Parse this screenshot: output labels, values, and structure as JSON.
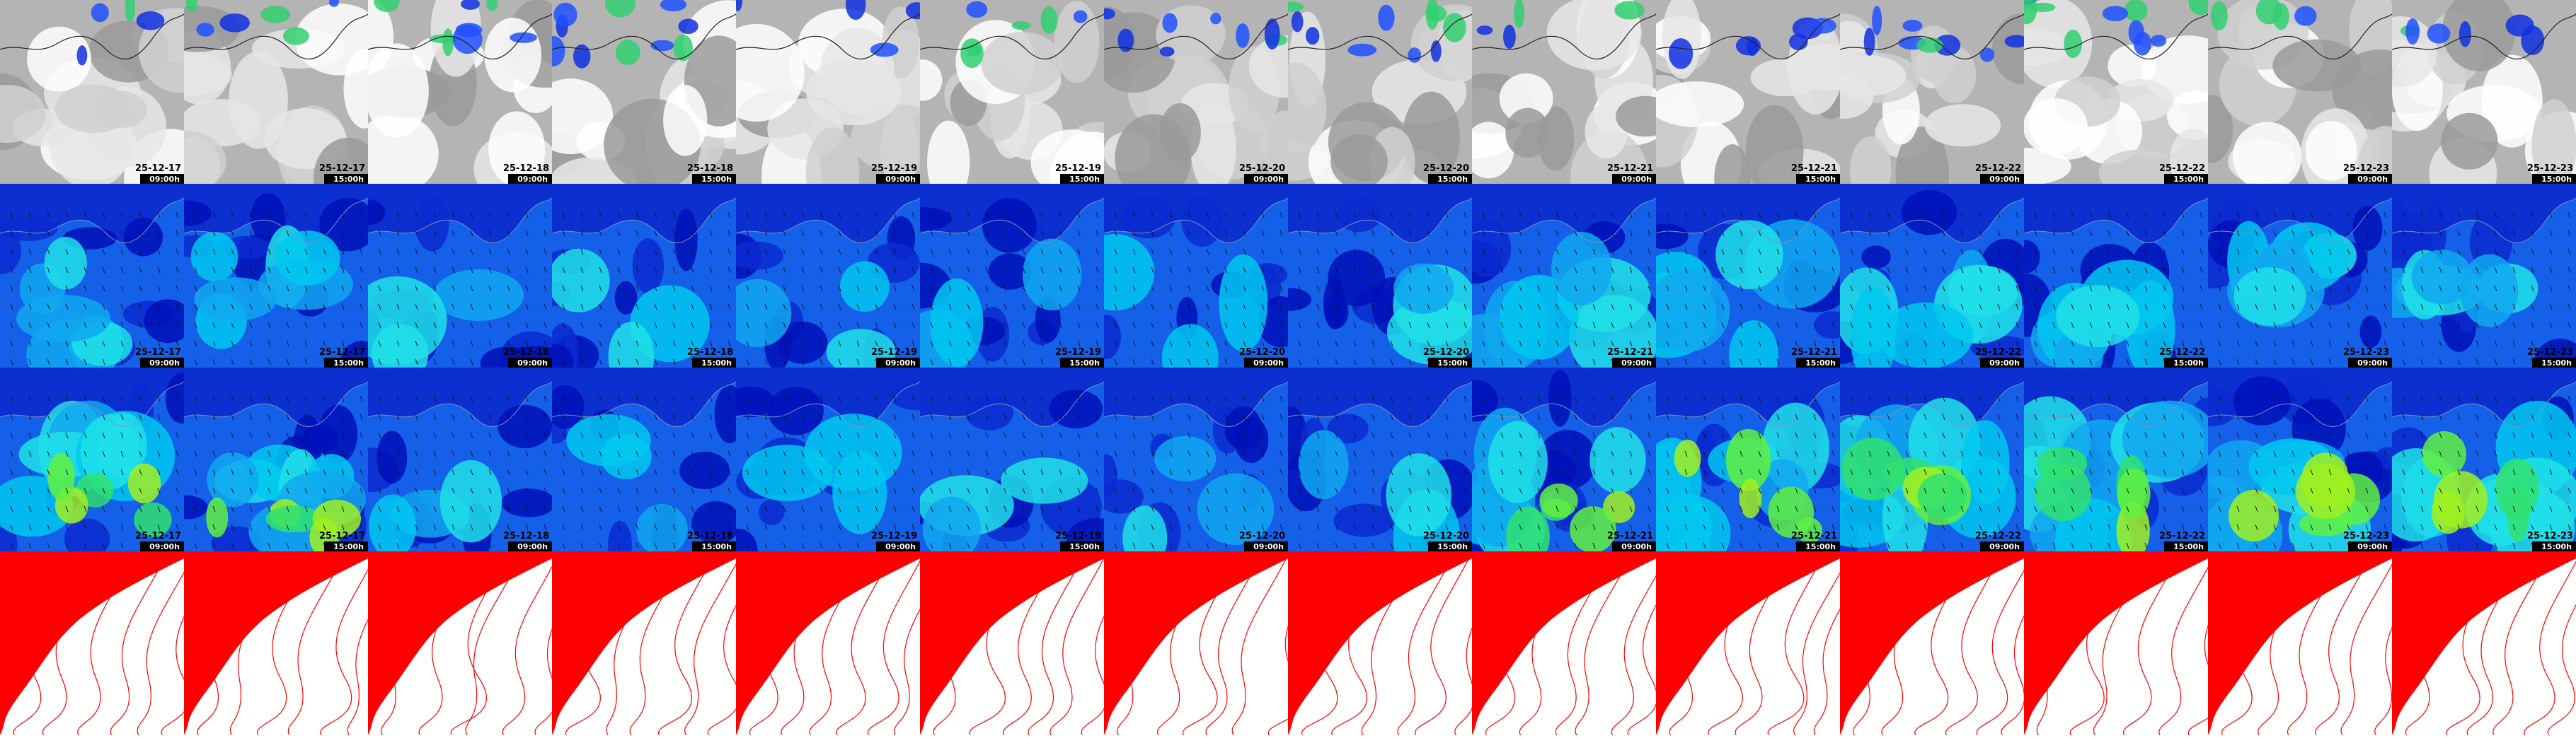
{
  "columns": [
    {
      "date": "25-12-17",
      "time": "09:00h"
    },
    {
      "date": "25-12-17",
      "time": "15:00h"
    },
    {
      "date": "25-12-18",
      "time": "09:00h"
    },
    {
      "date": "25-12-18",
      "time": "15:00h"
    },
    {
      "date": "25-12-19",
      "time": "09:00h"
    },
    {
      "date": "25-12-19",
      "time": "15:00h"
    },
    {
      "date": "25-12-20",
      "time": "09:00h"
    },
    {
      "date": "25-12-20",
      "time": "15:00h"
    },
    {
      "date": "25-12-21",
      "time": "09:00h"
    },
    {
      "date": "25-12-21",
      "time": "15:00h"
    },
    {
      "date": "25-12-22",
      "time": "09:00h"
    },
    {
      "date": "25-12-22",
      "time": "15:00h"
    },
    {
      "date": "25-12-23",
      "time": "09:00h"
    },
    {
      "date": "25-12-23",
      "time": "15:00h"
    }
  ]
}
